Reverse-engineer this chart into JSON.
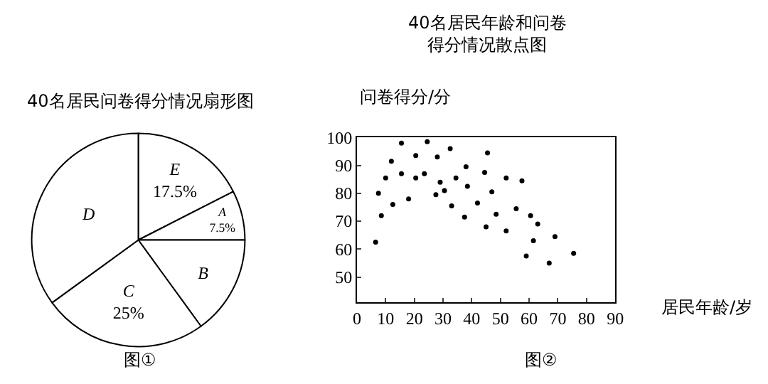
{
  "chart_data": [
    {
      "type": "pie",
      "title": "40名居民问卷得分情况扇形图",
      "categories": [
        "E",
        "A",
        "B",
        "C",
        "D"
      ],
      "values": [
        17.5,
        7.5,
        15,
        25,
        35
      ],
      "value_labels": [
        "17.5%",
        "7.5%",
        null,
        "25%",
        null
      ],
      "colors": [
        "#ffffff",
        "#ffffff",
        "#ffffff",
        "#ffffff",
        "#ffffff"
      ],
      "annotations": [
        "图①"
      ]
    },
    {
      "type": "scatter",
      "title": "40名居民年龄和问卷得分情况散点图",
      "xlabel": "居民年龄/岁",
      "ylabel": "问卷得分/分",
      "marker": "circle",
      "x": [
        6.5,
        7.5,
        8.5,
        10,
        12,
        12.5,
        15.5,
        15.5,
        18,
        20.5,
        20.5,
        23.5,
        24.5,
        27.5,
        28,
        29,
        30.5,
        32.5,
        33,
        34.5,
        37.5,
        38,
        38.5,
        42,
        44.5,
        45,
        45.5,
        47,
        48.5,
        52,
        52,
        55.5,
        57.5,
        59,
        60.5,
        61.5,
        63,
        67,
        69,
        75.5
      ],
      "series": [
        {
          "color": "#000000",
          "values": [
            62.5,
            80,
            72,
            85.5,
            91.5,
            76,
            98,
            87,
            78,
            93.5,
            85.5,
            87,
            98.5,
            79.5,
            93,
            84,
            81,
            96,
            75.5,
            85.5,
            71.5,
            89.5,
            82.5,
            76.5,
            87.5,
            68,
            94.5,
            80.5,
            72.5,
            85.5,
            66.5,
            74.5,
            84.5,
            57.5,
            72,
            63,
            69,
            55,
            64.5,
            58.5
          ]
        }
      ],
      "xlim": [
        0,
        90
      ],
      "xticks": [
        0,
        10,
        20,
        30,
        40,
        50,
        60,
        70,
        80,
        90
      ],
      "ylim": [
        41,
        100
      ],
      "yticks": [
        50,
        60,
        70,
        80,
        90,
        100
      ],
      "annotations": [
        "图②"
      ]
    }
  ]
}
